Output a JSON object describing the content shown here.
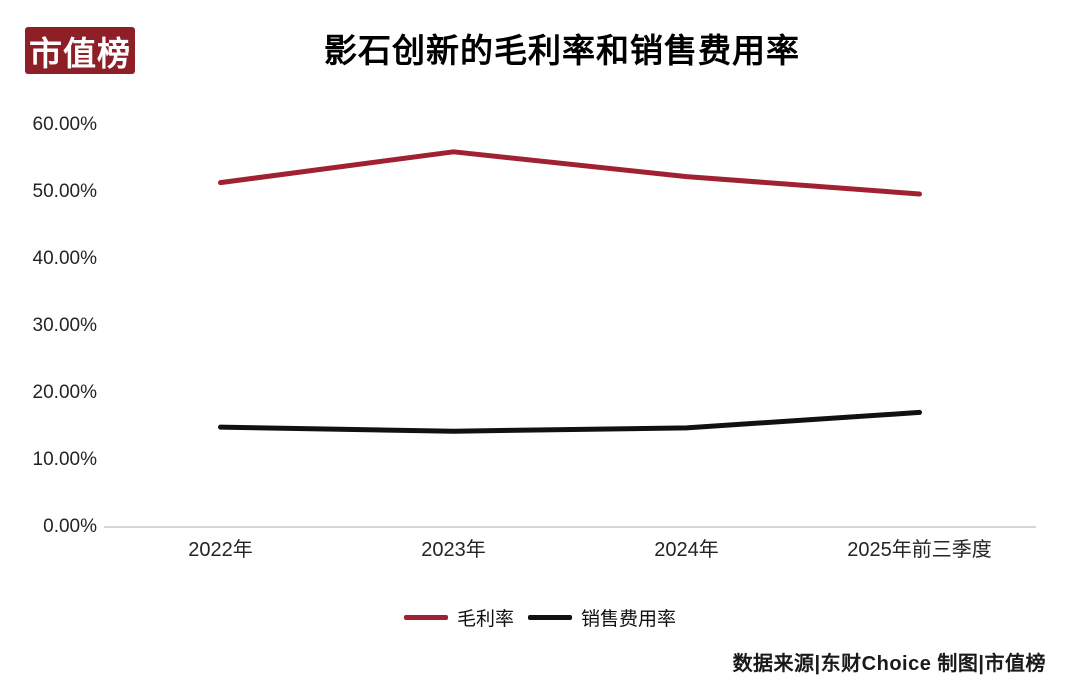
{
  "logo": {
    "text": "市值榜",
    "bg_color": "#8E1F26",
    "text_color": "#FFFFFF"
  },
  "header": {
    "title": "影石创新的毛利率和销售费用率"
  },
  "chart_data": {
    "type": "line",
    "title": "影石创新的毛利率和销售费用率",
    "categories": [
      "2022年",
      "2023年",
      "2024年",
      "2025年前三季度"
    ],
    "series": [
      {
        "name": "毛利率",
        "color": "#A02132",
        "values": [
          51.4,
          56.0,
          52.3,
          49.7
        ]
      },
      {
        "name": "销售费用率",
        "color": "#111111",
        "values": [
          14.9,
          14.3,
          14.8,
          17.1
        ]
      }
    ],
    "unit": "%",
    "ylim": [
      0,
      60
    ],
    "yticks": [
      {
        "value": 0,
        "label": "0.00%"
      },
      {
        "value": 10,
        "label": "10.00%"
      },
      {
        "value": 20,
        "label": "20.00%"
      },
      {
        "value": 30,
        "label": "30.00%"
      },
      {
        "value": 40,
        "label": "40.00%"
      },
      {
        "value": 50,
        "label": "50.00%"
      },
      {
        "value": 60,
        "label": "60.00%"
      }
    ],
    "grid": false,
    "legend_position": "bottom",
    "axis_line_color": "#C9C9C9"
  },
  "footer": {
    "source": "数据来源|东财Choice 制图|市值榜"
  }
}
